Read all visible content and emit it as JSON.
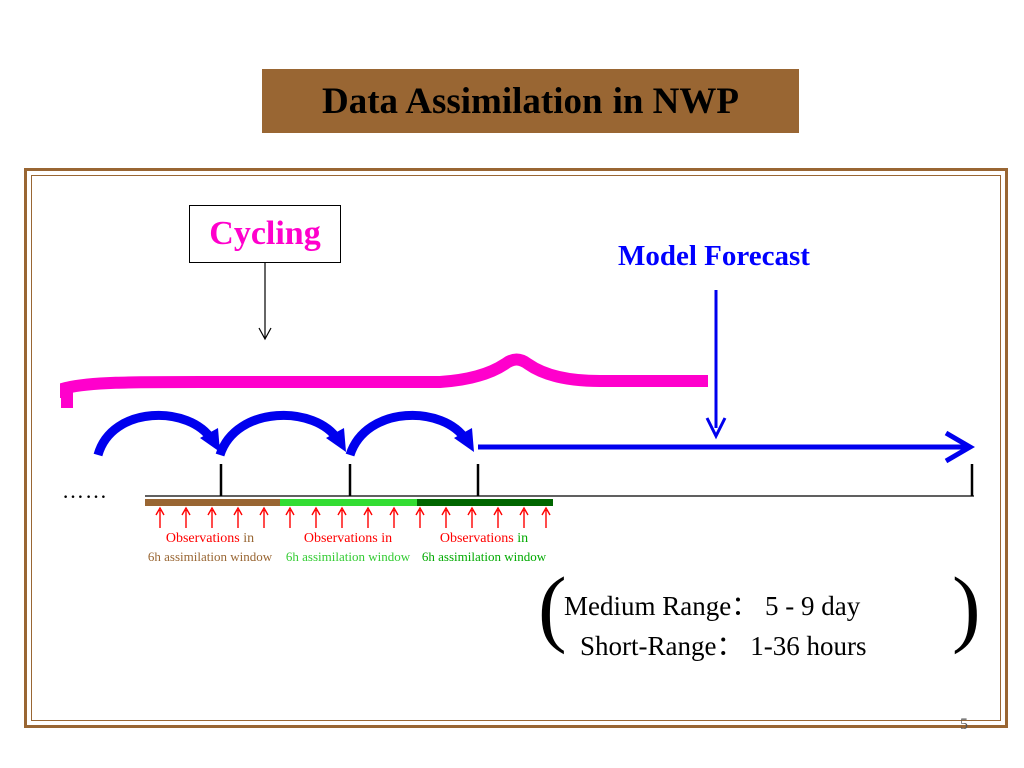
{
  "title": {
    "part1": "Data Assimilation",
    "part2": "in NWP"
  },
  "cycling_label": "Cycling",
  "model_forecast_label": "Model Forecast",
  "ellipsis": "……",
  "observations": [
    {
      "line1_a": "Observations",
      "line1_b": "in",
      "line2": "6h assimilation window",
      "color": "#996633"
    },
    {
      "line1_a": "Observations",
      "line1_b": "in",
      "line2": "6h assimilation window",
      "color": "#33dd33"
    },
    {
      "line1_a": "Observations",
      "line1_b": "in",
      "line2": "6h assimilation window",
      "color": "#006600"
    }
  ],
  "ranges": {
    "open_paren": "(",
    "close_paren": ")",
    "medium": "Medium Range：  5 - 9 day",
    "short": "Short-Range：  1-36 hours"
  },
  "page_number": "5",
  "colors": {
    "title_bg": "#996633",
    "cycling": "#ff00cc",
    "forecast": "#0000ff",
    "observation_arrow": "#ff0000",
    "observation_text": "#ff0000"
  }
}
